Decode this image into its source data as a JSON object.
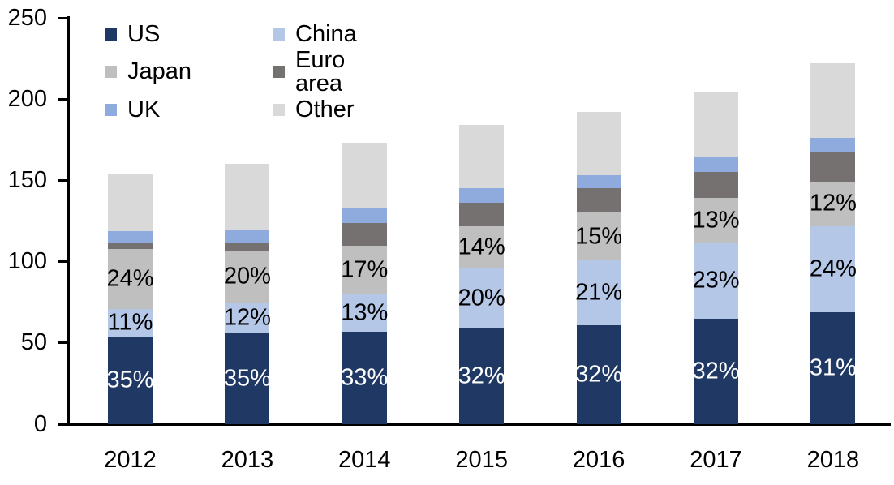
{
  "chart_data": {
    "type": "bar",
    "stacked": true,
    "title": "",
    "background": "#FFFFFF",
    "axis_color": "#000000",
    "grid": false,
    "categories": [
      "2012",
      "2013",
      "2014",
      "2015",
      "2016",
      "2017",
      "2018"
    ],
    "series": [
      {
        "name": "US",
        "color": "#1F3864",
        "values": [
          54,
          56,
          57,
          59,
          61,
          65,
          69
        ],
        "labels": [
          "35%",
          "35%",
          "33%",
          "32%",
          "32%",
          "32%",
          "31%"
        ],
        "label_color": "#FFFFFF"
      },
      {
        "name": "China",
        "color": "#B4C7E7",
        "values": [
          17,
          19,
          23,
          37,
          40,
          47,
          53
        ],
        "labels": [
          "11%",
          "12%",
          "13%",
          "20%",
          "21%",
          "23%",
          "24%"
        ],
        "label_color": "#000000"
      },
      {
        "name": "Japan",
        "color": "#BFBFBF",
        "values": [
          37,
          32,
          30,
          26,
          29,
          27,
          27
        ],
        "labels": [
          "24%",
          "20%",
          "17%",
          "14%",
          "15%",
          "13%",
          "12%"
        ],
        "label_color": "#000000"
      },
      {
        "name": "Euro area",
        "color": "#767171",
        "values": [
          4,
          5,
          14,
          14,
          15,
          16,
          18
        ],
        "labels": [
          null,
          null,
          null,
          null,
          null,
          null,
          null
        ],
        "label_color": "#000000"
      },
      {
        "name": "UK",
        "color": "#8FAADC",
        "values": [
          7,
          8,
          9,
          9,
          8,
          9,
          9
        ],
        "labels": [
          null,
          null,
          null,
          null,
          null,
          null,
          null
        ],
        "label_color": "#000000"
      },
      {
        "name": "Other",
        "color": "#D9D9D9",
        "values": [
          35,
          40,
          40,
          39,
          39,
          40,
          46
        ],
        "labels": [
          null,
          null,
          null,
          null,
          null,
          null,
          null
        ],
        "label_color": "#000000"
      }
    ],
    "totals": [
      154,
      160,
      173,
      184,
      192,
      204,
      222
    ],
    "y_axis": {
      "min": 0,
      "max": 250,
      "tick_step": 50,
      "ticks": [
        0,
        50,
        100,
        150,
        200,
        250
      ]
    },
    "x_axis": {
      "tick_labels": [
        "2012",
        "2013",
        "2014",
        "2015",
        "2016",
        "2017",
        "2018"
      ]
    },
    "legend": {
      "position": "top-left",
      "columns": 2,
      "entries": [
        "US",
        "China",
        "Japan",
        "Euro area",
        "UK",
        "Other"
      ]
    }
  }
}
